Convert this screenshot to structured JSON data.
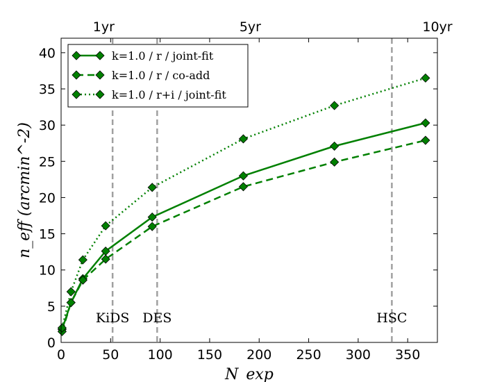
{
  "chart_data": {
    "type": "line",
    "xlabel": "N_exp",
    "ylabel": "n_eff  (arcmin^-2)",
    "xlim": [
      0,
      380
    ],
    "ylim": [
      0,
      42
    ],
    "x_ticks": [
      0,
      50,
      100,
      150,
      200,
      250,
      300,
      350
    ],
    "y_ticks": [
      0,
      5,
      10,
      15,
      20,
      25,
      30,
      35,
      40
    ],
    "top_axis": [
      {
        "label": "1yr",
        "x": 43
      },
      {
        "label": "5yr",
        "x": 191
      },
      {
        "label": "10yr",
        "x": 380
      }
    ],
    "vertical_lines": [
      {
        "x": 52,
        "label": "KiDS"
      },
      {
        "x": 97,
        "label": "DES"
      },
      {
        "x": 334,
        "label": "HSC"
      }
    ],
    "color": "#008000",
    "series": [
      {
        "name": "k=1.0 / r / joint-fit",
        "style": "solid",
        "x": [
          1,
          10,
          22,
          45,
          92,
          184,
          276,
          368
        ],
        "y": [
          1.8,
          5.5,
          8.8,
          12.6,
          17.3,
          23.0,
          27.1,
          30.3
        ]
      },
      {
        "name": "k=1.0 / r / co-add",
        "style": "dashed",
        "x": [
          1,
          10,
          22,
          45,
          92,
          184,
          276,
          368
        ],
        "y": [
          1.5,
          5.5,
          8.6,
          11.5,
          16.0,
          21.5,
          24.9,
          27.9
        ]
      },
      {
        "name": "k=1.0 / r+i / joint-fit",
        "style": "dotted",
        "x": [
          1,
          10,
          22,
          45,
          92,
          184,
          276,
          368
        ],
        "y": [
          2.0,
          7.0,
          11.4,
          16.1,
          21.4,
          28.1,
          32.7,
          36.5
        ]
      }
    ]
  }
}
